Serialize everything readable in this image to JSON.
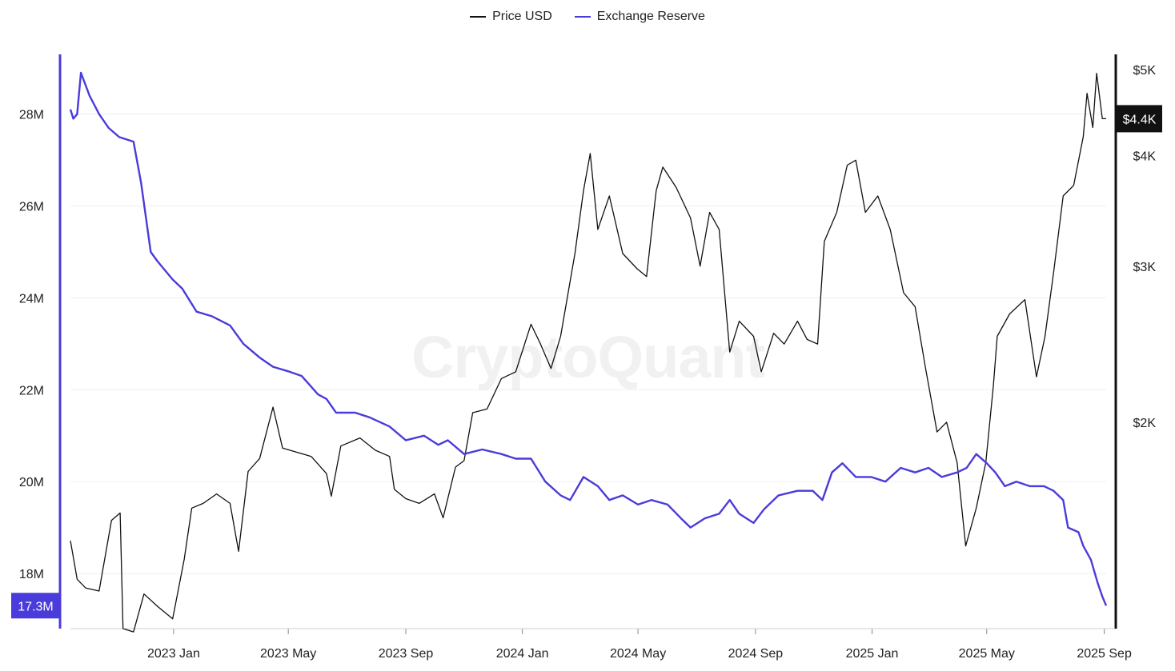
{
  "colors": {
    "price": "#111111",
    "reserve": "#4A3BDB",
    "grid": "#efefef",
    "axis": "#888888",
    "price_badge_bg": "#111111",
    "reserve_badge_bg": "#4A3BDB"
  },
  "legend": [
    {
      "label": "Price USD",
      "color": "#111111"
    },
    {
      "label": "Exchange Reserve",
      "color": "#4A3BDB"
    }
  ],
  "watermark": "CryptoQuant",
  "chart_data": {
    "type": "line",
    "x_range": [
      "2022-09-15",
      "2025-09-03"
    ],
    "x_ticks": [
      {
        "date": "2023-01-01",
        "label": "2023 Jan"
      },
      {
        "date": "2023-05-01",
        "label": "2023 May"
      },
      {
        "date": "2023-09-01",
        "label": "2023 Sep"
      },
      {
        "date": "2024-01-01",
        "label": "2024 Jan"
      },
      {
        "date": "2024-05-01",
        "label": "2024 May"
      },
      {
        "date": "2024-09-01",
        "label": "2024 Sep"
      },
      {
        "date": "2025-01-01",
        "label": "2025 Jan"
      },
      {
        "date": "2025-05-01",
        "label": "2025 May"
      },
      {
        "date": "2025-09-01",
        "label": "2025 Sep"
      }
    ],
    "left_axis": {
      "series": "Exchange Reserve",
      "range": [
        16.8,
        29.3
      ],
      "ticks": [
        {
          "value": 18,
          "label": "18M"
        },
        {
          "value": 20,
          "label": "20M"
        },
        {
          "value": 22,
          "label": "22M"
        },
        {
          "value": 24,
          "label": "24M"
        },
        {
          "value": 26,
          "label": "26M"
        },
        {
          "value": 28,
          "label": "28M"
        }
      ],
      "current_label": "17.3M",
      "current_value": 17.3
    },
    "right_axis": {
      "series": "Price USD",
      "scale": "log",
      "range": [
        1170,
        5200
      ],
      "ticks": [
        {
          "value": 2000,
          "label": "$2K"
        },
        {
          "value": 3000,
          "label": "$3K"
        },
        {
          "value": 4000,
          "label": "$4K"
        },
        {
          "value": 5000,
          "label": "$5K"
        }
      ],
      "current_label": "$4.4K",
      "current_value": 4400
    },
    "series": [
      {
        "name": "Price USD",
        "axis": "right",
        "points": [
          [
            "2022-09-15",
            1470
          ],
          [
            "2022-09-22",
            1330
          ],
          [
            "2022-10-01",
            1300
          ],
          [
            "2022-10-15",
            1290
          ],
          [
            "2022-10-28",
            1550
          ],
          [
            "2022-11-06",
            1580
          ],
          [
            "2022-11-09",
            1170
          ],
          [
            "2022-11-20",
            1160
          ],
          [
            "2022-12-01",
            1280
          ],
          [
            "2022-12-15",
            1240
          ],
          [
            "2022-12-31",
            1200
          ],
          [
            "2023-01-12",
            1400
          ],
          [
            "2023-01-20",
            1600
          ],
          [
            "2023-02-01",
            1620
          ],
          [
            "2023-02-15",
            1660
          ],
          [
            "2023-03-01",
            1620
          ],
          [
            "2023-03-10",
            1430
          ],
          [
            "2023-03-20",
            1760
          ],
          [
            "2023-04-01",
            1820
          ],
          [
            "2023-04-15",
            2080
          ],
          [
            "2023-04-25",
            1870
          ],
          [
            "2023-05-10",
            1850
          ],
          [
            "2023-05-25",
            1830
          ],
          [
            "2023-06-10",
            1750
          ],
          [
            "2023-06-15",
            1650
          ],
          [
            "2023-06-25",
            1880
          ],
          [
            "2023-07-15",
            1920
          ],
          [
            "2023-07-31",
            1860
          ],
          [
            "2023-08-15",
            1830
          ],
          [
            "2023-08-20",
            1680
          ],
          [
            "2023-09-01",
            1640
          ],
          [
            "2023-09-15",
            1620
          ],
          [
            "2023-10-01",
            1660
          ],
          [
            "2023-10-10",
            1560
          ],
          [
            "2023-10-23",
            1780
          ],
          [
            "2023-11-01",
            1810
          ],
          [
            "2023-11-10",
            2050
          ],
          [
            "2023-11-25",
            2070
          ],
          [
            "2023-12-10",
            2240
          ],
          [
            "2023-12-25",
            2280
          ],
          [
            "2024-01-10",
            2580
          ],
          [
            "2024-01-20",
            2450
          ],
          [
            "2024-01-31",
            2300
          ],
          [
            "2024-02-10",
            2500
          ],
          [
            "2024-02-25",
            3100
          ],
          [
            "2024-03-05",
            3650
          ],
          [
            "2024-03-12",
            4020
          ],
          [
            "2024-03-20",
            3300
          ],
          [
            "2024-04-01",
            3600
          ],
          [
            "2024-04-15",
            3100
          ],
          [
            "2024-04-30",
            2980
          ],
          [
            "2024-05-10",
            2920
          ],
          [
            "2024-05-20",
            3650
          ],
          [
            "2024-05-27",
            3880
          ],
          [
            "2024-06-10",
            3680
          ],
          [
            "2024-06-25",
            3400
          ],
          [
            "2024-07-05",
            3000
          ],
          [
            "2024-07-15",
            3450
          ],
          [
            "2024-07-25",
            3300
          ],
          [
            "2024-08-05",
            2400
          ],
          [
            "2024-08-15",
            2600
          ],
          [
            "2024-08-30",
            2500
          ],
          [
            "2024-09-07",
            2280
          ],
          [
            "2024-09-20",
            2520
          ],
          [
            "2024-10-01",
            2450
          ],
          [
            "2024-10-15",
            2600
          ],
          [
            "2024-10-25",
            2480
          ],
          [
            "2024-11-05",
            2450
          ],
          [
            "2024-11-12",
            3200
          ],
          [
            "2024-11-25",
            3450
          ],
          [
            "2024-12-06",
            3900
          ],
          [
            "2024-12-15",
            3950
          ],
          [
            "2024-12-25",
            3450
          ],
          [
            "2025-01-07",
            3600
          ],
          [
            "2025-01-20",
            3300
          ],
          [
            "2025-02-03",
            2800
          ],
          [
            "2025-02-15",
            2700
          ],
          [
            "2025-02-26",
            2300
          ],
          [
            "2025-03-10",
            1950
          ],
          [
            "2025-03-20",
            2000
          ],
          [
            "2025-03-31",
            1800
          ],
          [
            "2025-04-09",
            1450
          ],
          [
            "2025-04-20",
            1600
          ],
          [
            "2025-04-30",
            1800
          ],
          [
            "2025-05-08",
            2200
          ],
          [
            "2025-05-12",
            2500
          ],
          [
            "2025-05-25",
            2650
          ],
          [
            "2025-06-10",
            2750
          ],
          [
            "2025-06-22",
            2250
          ],
          [
            "2025-07-01",
            2500
          ],
          [
            "2025-07-10",
            2950
          ],
          [
            "2025-07-20",
            3600
          ],
          [
            "2025-07-31",
            3700
          ],
          [
            "2025-08-10",
            4200
          ],
          [
            "2025-08-14",
            4700
          ],
          [
            "2025-08-20",
            4300
          ],
          [
            "2025-08-24",
            4950
          ],
          [
            "2025-08-30",
            4400
          ],
          [
            "2025-09-03",
            4400
          ]
        ]
      },
      {
        "name": "Exchange Reserve",
        "axis": "left",
        "points": [
          [
            "2022-09-15",
            28.1
          ],
          [
            "2022-09-18",
            27.9
          ],
          [
            "2022-09-22",
            28.0
          ],
          [
            "2022-09-26",
            28.9
          ],
          [
            "2022-10-05",
            28.4
          ],
          [
            "2022-10-15",
            28.0
          ],
          [
            "2022-10-25",
            27.7
          ],
          [
            "2022-11-05",
            27.5
          ],
          [
            "2022-11-20",
            27.4
          ],
          [
            "2022-11-28",
            26.5
          ],
          [
            "2022-12-08",
            25.0
          ],
          [
            "2022-12-15",
            24.8
          ],
          [
            "2022-12-31",
            24.4
          ],
          [
            "2023-01-10",
            24.2
          ],
          [
            "2023-01-25",
            23.7
          ],
          [
            "2023-02-10",
            23.6
          ],
          [
            "2023-03-01",
            23.4
          ],
          [
            "2023-03-15",
            23.0
          ],
          [
            "2023-04-01",
            22.7
          ],
          [
            "2023-04-15",
            22.5
          ],
          [
            "2023-05-01",
            22.4
          ],
          [
            "2023-05-15",
            22.3
          ],
          [
            "2023-06-01",
            21.9
          ],
          [
            "2023-06-10",
            21.8
          ],
          [
            "2023-06-20",
            21.5
          ],
          [
            "2023-07-10",
            21.5
          ],
          [
            "2023-07-25",
            21.4
          ],
          [
            "2023-08-15",
            21.2
          ],
          [
            "2023-09-01",
            20.9
          ],
          [
            "2023-09-20",
            21.0
          ],
          [
            "2023-10-05",
            20.8
          ],
          [
            "2023-10-15",
            20.9
          ],
          [
            "2023-11-01",
            20.6
          ],
          [
            "2023-11-20",
            20.7
          ],
          [
            "2023-12-10",
            20.6
          ],
          [
            "2023-12-25",
            20.5
          ],
          [
            "2024-01-10",
            20.5
          ],
          [
            "2024-01-25",
            20.0
          ],
          [
            "2024-02-10",
            19.7
          ],
          [
            "2024-02-20",
            19.6
          ],
          [
            "2024-03-05",
            20.1
          ],
          [
            "2024-03-20",
            19.9
          ],
          [
            "2024-04-01",
            19.6
          ],
          [
            "2024-04-15",
            19.7
          ],
          [
            "2024-05-01",
            19.5
          ],
          [
            "2024-05-15",
            19.6
          ],
          [
            "2024-06-01",
            19.5
          ],
          [
            "2024-06-15",
            19.2
          ],
          [
            "2024-06-25",
            19.0
          ],
          [
            "2024-07-10",
            19.2
          ],
          [
            "2024-07-25",
            19.3
          ],
          [
            "2024-08-05",
            19.6
          ],
          [
            "2024-08-15",
            19.3
          ],
          [
            "2024-08-30",
            19.1
          ],
          [
            "2024-09-10",
            19.4
          ],
          [
            "2024-09-25",
            19.7
          ],
          [
            "2024-10-15",
            19.8
          ],
          [
            "2024-10-31",
            19.8
          ],
          [
            "2024-11-10",
            19.6
          ],
          [
            "2024-11-20",
            20.2
          ],
          [
            "2024-12-01",
            20.4
          ],
          [
            "2024-12-15",
            20.1
          ],
          [
            "2024-12-31",
            20.1
          ],
          [
            "2025-01-15",
            20.0
          ],
          [
            "2025-01-31",
            20.3
          ],
          [
            "2025-02-15",
            20.2
          ],
          [
            "2025-03-01",
            20.3
          ],
          [
            "2025-03-15",
            20.1
          ],
          [
            "2025-03-31",
            20.2
          ],
          [
            "2025-04-10",
            20.3
          ],
          [
            "2025-04-20",
            20.6
          ],
          [
            "2025-05-01",
            20.4
          ],
          [
            "2025-05-10",
            20.2
          ],
          [
            "2025-05-20",
            19.9
          ],
          [
            "2025-06-01",
            20.0
          ],
          [
            "2025-06-15",
            19.9
          ],
          [
            "2025-06-30",
            19.9
          ],
          [
            "2025-07-10",
            19.8
          ],
          [
            "2025-07-20",
            19.6
          ],
          [
            "2025-07-25",
            19.0
          ],
          [
            "2025-08-05",
            18.9
          ],
          [
            "2025-08-10",
            18.6
          ],
          [
            "2025-08-18",
            18.3
          ],
          [
            "2025-08-25",
            17.8
          ],
          [
            "2025-08-30",
            17.5
          ],
          [
            "2025-09-03",
            17.3
          ]
        ]
      }
    ]
  }
}
